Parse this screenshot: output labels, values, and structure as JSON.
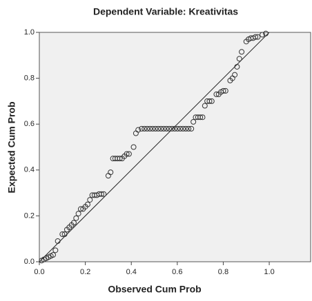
{
  "chart_data": {
    "type": "scatter",
    "title": "Dependent Variable: Kreativitas",
    "x_label": "Observed Cum Prob",
    "y_label": "Expected Cum Prob",
    "x": [
      0.01,
      0.02,
      0.03,
      0.04,
      0.05,
      0.06,
      0.07,
      0.08,
      0.1,
      0.11,
      0.12,
      0.13,
      0.14,
      0.15,
      0.16,
      0.17,
      0.18,
      0.19,
      0.2,
      0.21,
      0.22,
      0.23,
      0.24,
      0.25,
      0.26,
      0.27,
      0.28,
      0.3,
      0.31,
      0.32,
      0.33,
      0.34,
      0.35,
      0.36,
      0.37,
      0.38,
      0.39,
      0.41,
      0.42,
      0.43,
      0.445,
      0.457,
      0.469,
      0.481,
      0.493,
      0.505,
      0.517,
      0.529,
      0.541,
      0.553,
      0.565,
      0.577,
      0.589,
      0.601,
      0.613,
      0.625,
      0.637,
      0.649,
      0.661,
      0.67,
      0.68,
      0.69,
      0.7,
      0.71,
      0.72,
      0.73,
      0.74,
      0.75,
      0.77,
      0.78,
      0.79,
      0.8,
      0.81,
      0.83,
      0.84,
      0.85,
      0.86,
      0.87,
      0.88,
      0.9,
      0.91,
      0.92,
      0.93,
      0.94,
      0.95,
      0.97,
      0.985
    ],
    "values": [
      0.005,
      0.01,
      0.015,
      0.02,
      0.025,
      0.03,
      0.05,
      0.09,
      0.12,
      0.12,
      0.14,
      0.15,
      0.16,
      0.17,
      0.19,
      0.21,
      0.23,
      0.23,
      0.24,
      0.25,
      0.27,
      0.29,
      0.29,
      0.29,
      0.295,
      0.295,
      0.295,
      0.375,
      0.39,
      0.45,
      0.45,
      0.45,
      0.45,
      0.45,
      0.46,
      0.47,
      0.47,
      0.5,
      0.56,
      0.575,
      0.58,
      0.58,
      0.58,
      0.58,
      0.58,
      0.58,
      0.58,
      0.58,
      0.58,
      0.58,
      0.58,
      0.58,
      0.58,
      0.58,
      0.58,
      0.58,
      0.58,
      0.58,
      0.58,
      0.61,
      0.63,
      0.63,
      0.63,
      0.63,
      0.68,
      0.7,
      0.7,
      0.7,
      0.73,
      0.73,
      0.74,
      0.745,
      0.745,
      0.79,
      0.8,
      0.815,
      0.85,
      0.885,
      0.915,
      0.96,
      0.97,
      0.975,
      0.975,
      0.98,
      0.98,
      0.99,
      0.995
    ],
    "color": "#333333",
    "xlim": [
      0,
      1.18
    ],
    "ylim": [
      0,
      1
    ],
    "xticks": [
      {
        "value": 0,
        "label": "0.0"
      },
      0.2,
      0.4,
      0.6,
      0.8,
      {
        "value": 1,
        "label": "1.0"
      }
    ],
    "yticks": [
      {
        "value": 0,
        "label": "0.0"
      },
      0.2,
      0.4,
      0.6,
      0.8,
      {
        "value": 1,
        "label": "1.0"
      }
    ]
  }
}
